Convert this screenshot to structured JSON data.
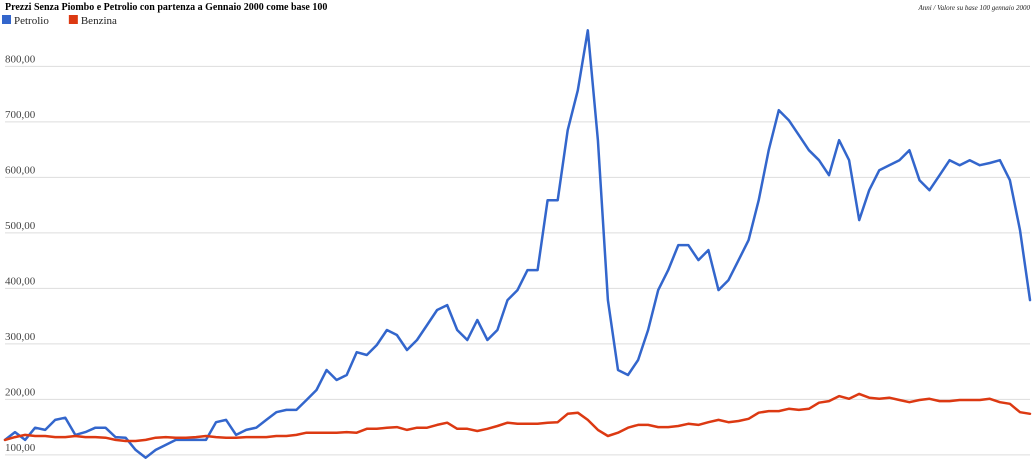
{
  "chart_data": {
    "type": "line",
    "title": "Prezzi Senza Piombo e Petrolio con partenza a Gennaio 2000 come base 100",
    "axis_note": "Anni / Valore su base 100 gennaio 2000",
    "ylim": [
      80,
      880
    ],
    "yticks": [
      {
        "value": 100,
        "label": "100,00"
      },
      {
        "value": 200,
        "label": "200,00"
      },
      {
        "value": 300,
        "label": "300,00"
      },
      {
        "value": 400,
        "label": "400,00"
      },
      {
        "value": 500,
        "label": "500,00"
      },
      {
        "value": 600,
        "label": "600,00"
      },
      {
        "value": 700,
        "label": "700,00"
      },
      {
        "value": 800,
        "label": "800,00"
      }
    ],
    "grid": true,
    "series": [
      {
        "name": "Petrolio",
        "color": "#3366cc",
        "values": [
          127,
          141,
          127,
          149,
          145,
          163,
          167,
          136,
          141,
          149,
          149,
          132,
          131,
          109,
          95,
          109,
          118,
          127,
          127,
          127,
          127,
          159,
          163,
          136,
          145,
          149,
          163,
          177,
          181,
          181,
          199,
          217,
          253,
          235,
          244,
          285,
          280,
          298,
          325,
          316,
          289,
          307,
          334,
          361,
          370,
          325,
          307,
          343,
          307,
          325,
          379,
          397,
          433,
          433,
          559,
          559,
          685,
          757,
          865,
          667,
          379,
          253,
          244,
          271,
          325,
          397,
          433,
          478,
          478,
          451,
          469,
          397,
          415,
          451,
          487,
          559,
          649,
          721,
          703,
          676,
          649,
          631,
          604,
          667,
          631,
          523,
          577,
          613,
          622,
          631,
          649,
          595,
          577,
          604,
          631,
          622,
          631,
          622,
          626,
          631,
          595,
          505,
          379
        ]
      },
      {
        "name": "Benzina",
        "color": "#dc3912",
        "values": [
          127,
          132,
          136,
          134,
          134,
          132,
          132,
          134,
          132,
          132,
          131,
          127,
          125,
          125,
          127,
          131,
          132,
          131,
          131,
          132,
          134,
          132,
          131,
          131,
          132,
          132,
          132,
          134,
          134,
          136,
          140,
          140,
          140,
          140,
          141,
          140,
          147,
          147,
          149,
          150,
          145,
          149,
          149,
          154,
          158,
          147,
          147,
          143,
          147,
          152,
          158,
          156,
          156,
          156,
          158,
          159,
          174,
          176,
          163,
          145,
          134,
          140,
          149,
          154,
          154,
          150,
          150,
          152,
          156,
          154,
          159,
          163,
          159,
          161,
          165,
          176,
          179,
          179,
          183,
          181,
          183,
          194,
          197,
          206,
          201,
          210,
          203,
          201,
          203,
          199,
          195,
          199,
          201,
          197,
          197,
          199,
          199,
          199,
          201,
          195,
          192,
          177,
          174
        ]
      }
    ]
  }
}
